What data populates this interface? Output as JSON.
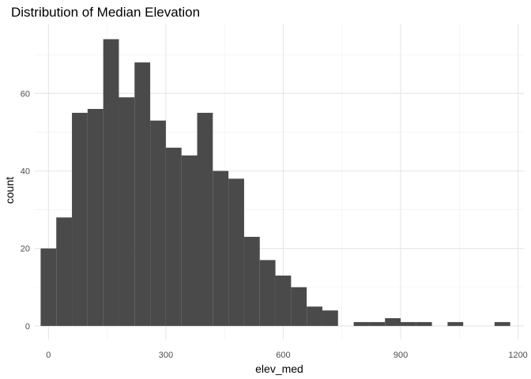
{
  "chart_data": {
    "type": "bar",
    "title": "Distribution of Median Elevation",
    "xlabel": "elev_med",
    "ylabel": "count",
    "xlim": [
      -35,
      1215
    ],
    "ylim": [
      -3.5,
      78
    ],
    "x_ticks": [
      0,
      300,
      600,
      900,
      1200
    ],
    "x_minor_ticks": [
      150,
      450,
      750,
      1050
    ],
    "y_ticks": [
      0,
      20,
      40,
      60
    ],
    "y_minor_ticks": [
      10,
      30,
      50,
      70
    ],
    "grid": true,
    "bar_color": "#4a4a4a",
    "bins": [
      {
        "x0": -20,
        "x1": 20,
        "count": 20
      },
      {
        "x0": 20,
        "x1": 60,
        "count": 28
      },
      {
        "x0": 60,
        "x1": 100,
        "count": 55
      },
      {
        "x0": 100,
        "x1": 140,
        "count": 56
      },
      {
        "x0": 140,
        "x1": 180,
        "count": 74
      },
      {
        "x0": 180,
        "x1": 220,
        "count": 59
      },
      {
        "x0": 220,
        "x1": 260,
        "count": 68
      },
      {
        "x0": 260,
        "x1": 300,
        "count": 53
      },
      {
        "x0": 300,
        "x1": 340,
        "count": 46
      },
      {
        "x0": 340,
        "x1": 380,
        "count": 44
      },
      {
        "x0": 380,
        "x1": 420,
        "count": 55
      },
      {
        "x0": 420,
        "x1": 460,
        "count": 40
      },
      {
        "x0": 460,
        "x1": 500,
        "count": 38
      },
      {
        "x0": 500,
        "x1": 540,
        "count": 23
      },
      {
        "x0": 540,
        "x1": 580,
        "count": 17
      },
      {
        "x0": 580,
        "x1": 620,
        "count": 13
      },
      {
        "x0": 620,
        "x1": 660,
        "count": 10
      },
      {
        "x0": 660,
        "x1": 700,
        "count": 5
      },
      {
        "x0": 700,
        "x1": 740,
        "count": 4
      },
      {
        "x0": 740,
        "x1": 780,
        "count": 0
      },
      {
        "x0": 780,
        "x1": 820,
        "count": 1
      },
      {
        "x0": 820,
        "x1": 860,
        "count": 1
      },
      {
        "x0": 860,
        "x1": 900,
        "count": 2
      },
      {
        "x0": 900,
        "x1": 940,
        "count": 1
      },
      {
        "x0": 940,
        "x1": 980,
        "count": 1
      },
      {
        "x0": 980,
        "x1": 1020,
        "count": 0
      },
      {
        "x0": 1020,
        "x1": 1060,
        "count": 1
      },
      {
        "x0": 1060,
        "x1": 1100,
        "count": 0
      },
      {
        "x0": 1100,
        "x1": 1140,
        "count": 0
      },
      {
        "x0": 1140,
        "x1": 1180,
        "count": 1
      }
    ]
  }
}
